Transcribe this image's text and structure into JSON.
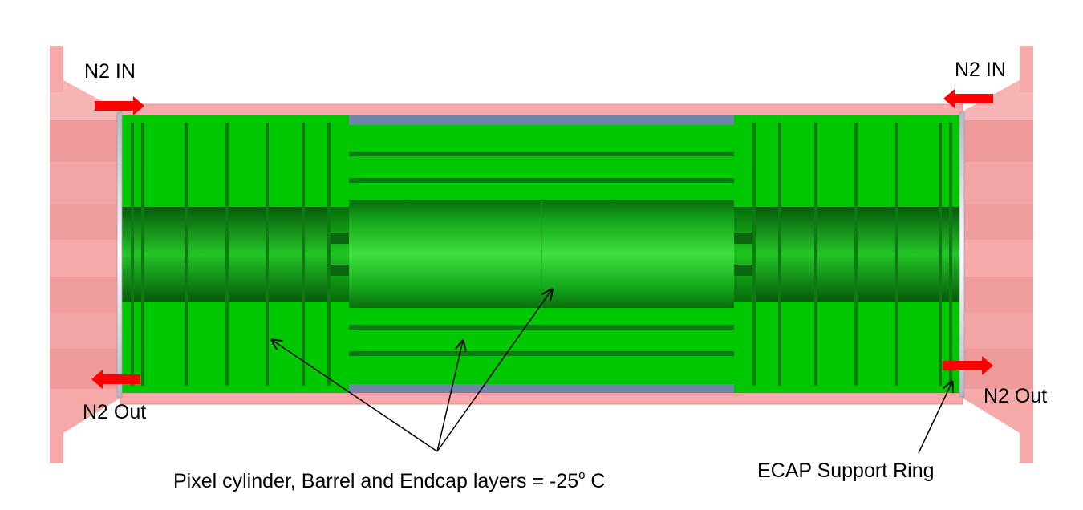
{
  "labels": {
    "n2_in_left": "N2 IN",
    "n2_in_right": "N2 IN",
    "n2_out_left": "N2 Out",
    "n2_out_right": "N2 Out",
    "pixel_prefix": "Pixel cylinder, Barrel and Endcap layers = -25",
    "pixel_degree": "o",
    "pixel_suffix": " C",
    "ecap_ring": "ECAP Support Ring"
  },
  "colors": {
    "shell": "#f5a9a9",
    "shell_dark": "#ee8f8f",
    "detector_green": "#00c800",
    "layer_dark": "#0e7a12",
    "barrel_blue": "#6f86a6",
    "arrow_red": "#ff0000",
    "ring": "#c9ccd6"
  },
  "icons": {
    "flow_arrow": "red-arrow-icon",
    "callout": "thin-black-arrow-icon"
  }
}
